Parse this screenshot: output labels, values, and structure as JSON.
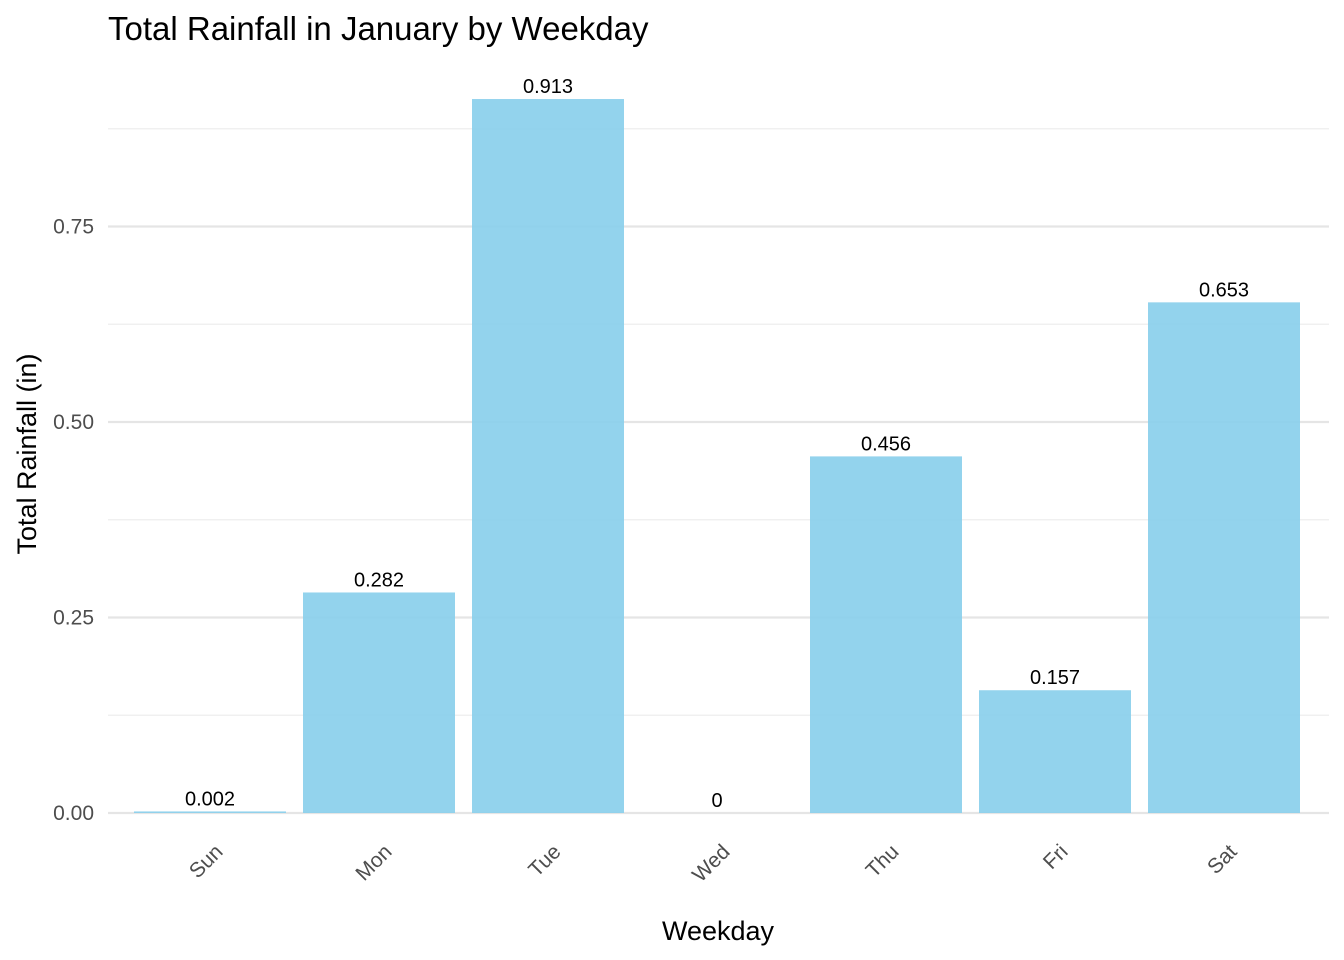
{
  "chart_data": {
    "type": "bar",
    "title": "Total Rainfall in January by Weekday",
    "xlabel": "Weekday",
    "ylabel": "Total Rainfall (in)",
    "categories": [
      "Sun",
      "Mon",
      "Tue",
      "Wed",
      "Thu",
      "Fri",
      "Sat"
    ],
    "values": [
      0.002,
      0.282,
      0.913,
      0,
      0.456,
      0.157,
      0.653
    ],
    "value_labels": [
      "0.002",
      "0.282",
      "0.913",
      "0",
      "0.456",
      "0.157",
      "0.653"
    ],
    "yticks": [
      0,
      0.25,
      0.5,
      0.75
    ],
    "ytick_labels": [
      "0.00",
      "0.25",
      "0.50",
      "0.75"
    ],
    "ylim": [
      0,
      0.913
    ],
    "grid": true,
    "legend": "none",
    "bar_color": "#87CEEB"
  }
}
